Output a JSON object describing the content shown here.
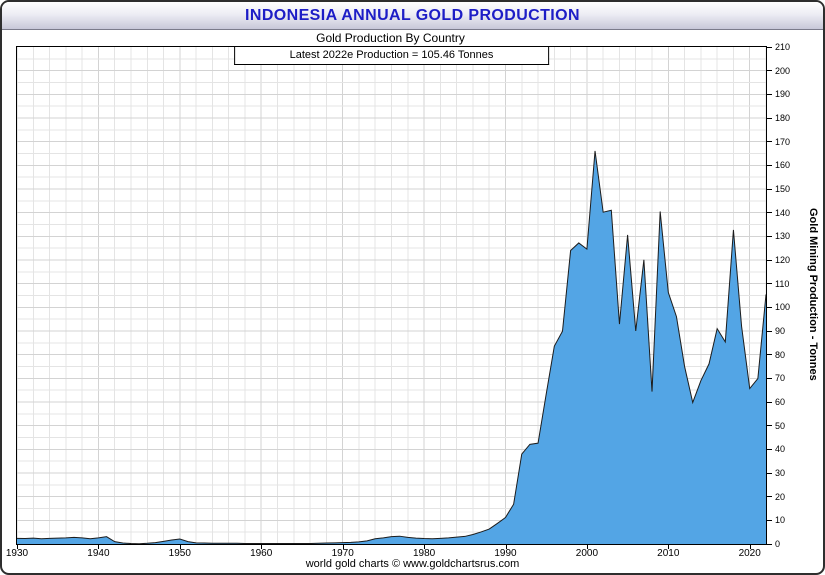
{
  "page": {
    "title": "INDONESIA ANNUAL GOLD PRODUCTION",
    "subtitle": "Gold Production By Country",
    "annotation": "Latest 2022e Production = 105.46 Tonnes",
    "footer": "world gold charts © www.goldchartsrus.com",
    "y_axis_label": "Gold Mining Production - Tonnes"
  },
  "colors": {
    "area_fill": "#53a5e5",
    "area_line": "#1c1c1c",
    "grid_minor": "#e4e4e4",
    "grid_major": "#d3d3d3",
    "title_text": "#1d1dc6",
    "plot_border": "#000000"
  },
  "chart_data": {
    "type": "area",
    "title": "Gold Production By Country",
    "annotation": "Latest 2022e Production = 105.46 Tonnes",
    "xlabel": "",
    "ylabel": "Gold Mining Production - Tonnes",
    "xlim": [
      1930,
      2022
    ],
    "ylim": [
      0,
      210
    ],
    "x_ticks": [
      1930,
      1940,
      1950,
      1960,
      1970,
      1980,
      1990,
      2000,
      2010,
      2020
    ],
    "y_ticks": [
      0,
      10,
      20,
      30,
      40,
      50,
      60,
      70,
      80,
      90,
      100,
      110,
      120,
      130,
      140,
      150,
      160,
      170,
      180,
      190,
      200,
      210
    ],
    "x_minor_step": 2,
    "y_minor_step": 5,
    "grid": true,
    "legend": "none",
    "series_name": "Indonesia Annual Gold Production (Tonnes)",
    "years": [
      1930,
      1931,
      1932,
      1933,
      1934,
      1935,
      1936,
      1937,
      1938,
      1939,
      1940,
      1941,
      1942,
      1943,
      1944,
      1945,
      1946,
      1947,
      1948,
      1949,
      1950,
      1951,
      1952,
      1953,
      1954,
      1955,
      1956,
      1957,
      1958,
      1959,
      1960,
      1961,
      1962,
      1963,
      1964,
      1965,
      1966,
      1967,
      1968,
      1969,
      1970,
      1971,
      1972,
      1973,
      1974,
      1975,
      1976,
      1977,
      1978,
      1979,
      1980,
      1981,
      1982,
      1983,
      1984,
      1985,
      1986,
      1987,
      1988,
      1989,
      1990,
      1991,
      1992,
      1993,
      1994,
      1995,
      1996,
      1997,
      1998,
      1999,
      2000,
      2001,
      2002,
      2003,
      2004,
      2005,
      2006,
      2007,
      2008,
      2009,
      2010,
      2011,
      2012,
      2013,
      2014,
      2015,
      2016,
      2017,
      2018,
      2019,
      2020,
      2021,
      2022
    ],
    "values": [
      2.4,
      2.3,
      2.5,
      2.2,
      2.4,
      2.5,
      2.6,
      2.8,
      2.6,
      2.2,
      2.6,
      3.1,
      1.0,
      0.4,
      0.2,
      0.1,
      0.3,
      0.6,
      1.1,
      1.7,
      2.1,
      1.0,
      0.5,
      0.4,
      0.3,
      0.3,
      0.3,
      0.3,
      0.2,
      0.2,
      0.2,
      0.2,
      0.2,
      0.2,
      0.2,
      0.2,
      0.2,
      0.3,
      0.4,
      0.5,
      0.6,
      0.7,
      0.9,
      1.3,
      2.2,
      2.6,
      3.1,
      3.3,
      2.8,
      2.5,
      2.3,
      2.2,
      2.4,
      2.6,
      2.9,
      3.2,
      4.0,
      5.1,
      6.3,
      8.7,
      11.2,
      16.8,
      38.0,
      42.1,
      42.6,
      63.3,
      83.6,
      89.9,
      124.0,
      127.2,
      124.6,
      166.1,
      140.2,
      141.0,
      92.9,
      130.6,
      90.0,
      120.1,
      64.4,
      140.5,
      106.3,
      96.1,
      75.0,
      59.8,
      69.0,
      76.1,
      91.0,
      85.4,
      132.7,
      92.0,
      65.7,
      69.9,
      105.46
    ]
  }
}
